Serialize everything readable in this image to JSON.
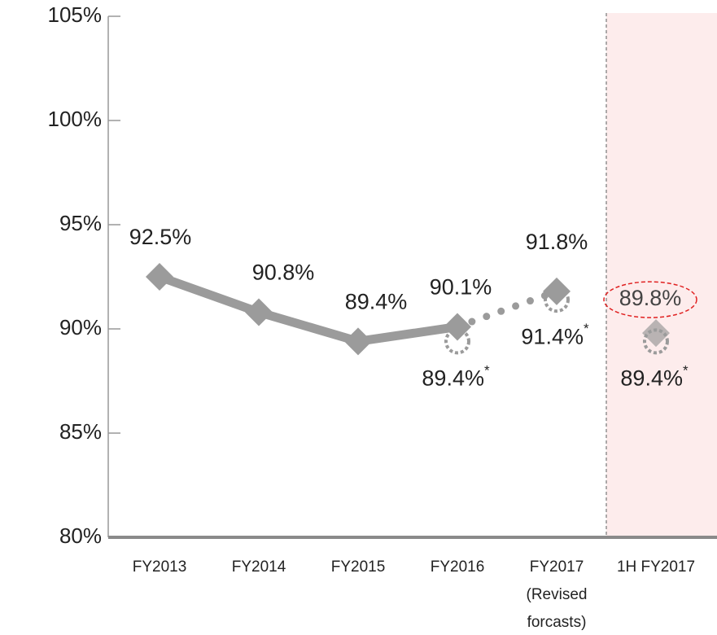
{
  "chart_data": {
    "type": "line",
    "categories": [
      "FY2013",
      "FY2014",
      "FY2015",
      "FY2016",
      "FY2017\n(Revised\nforcasts)",
      "1H FY2017"
    ],
    "series": [
      {
        "color": "#9b9b9b",
        "style": "solid",
        "values": [
          92.5,
          90.8,
          89.4,
          90.1,
          null,
          null
        ],
        "value_labels": [
          "92.5%",
          "90.8%",
          "89.4%",
          "90.1%",
          null,
          null
        ]
      },
      {
        "color": "#9b9b9b",
        "style": "forecast",
        "values": [
          null,
          null,
          null,
          null,
          91.8,
          89.8
        ],
        "value_labels": [
          null,
          null,
          null,
          null,
          "91.8%",
          "89.8%"
        ]
      },
      {
        "color": "#9b9b9b",
        "style": "adjusted",
        "values": [
          null,
          null,
          null,
          89.4,
          91.4,
          89.4
        ],
        "value_labels": [
          null,
          null,
          null,
          "89.4%",
          "91.4%",
          "89.4%"
        ]
      }
    ],
    "footnote_mark": "*",
    "highlight_category": 5,
    "highlight_color": "#fdecec",
    "highlight_label_color": "#e02020",
    "ylim": [
      80,
      105
    ],
    "yticks": [
      {
        "value": 80,
        "label": "80%"
      },
      {
        "value": 85,
        "label": "85%"
      },
      {
        "value": 90,
        "label": "90%"
      },
      {
        "value": 95,
        "label": "95%"
      },
      {
        "value": 100,
        "label": "100%"
      },
      {
        "value": 105,
        "label": "105%"
      }
    ]
  }
}
